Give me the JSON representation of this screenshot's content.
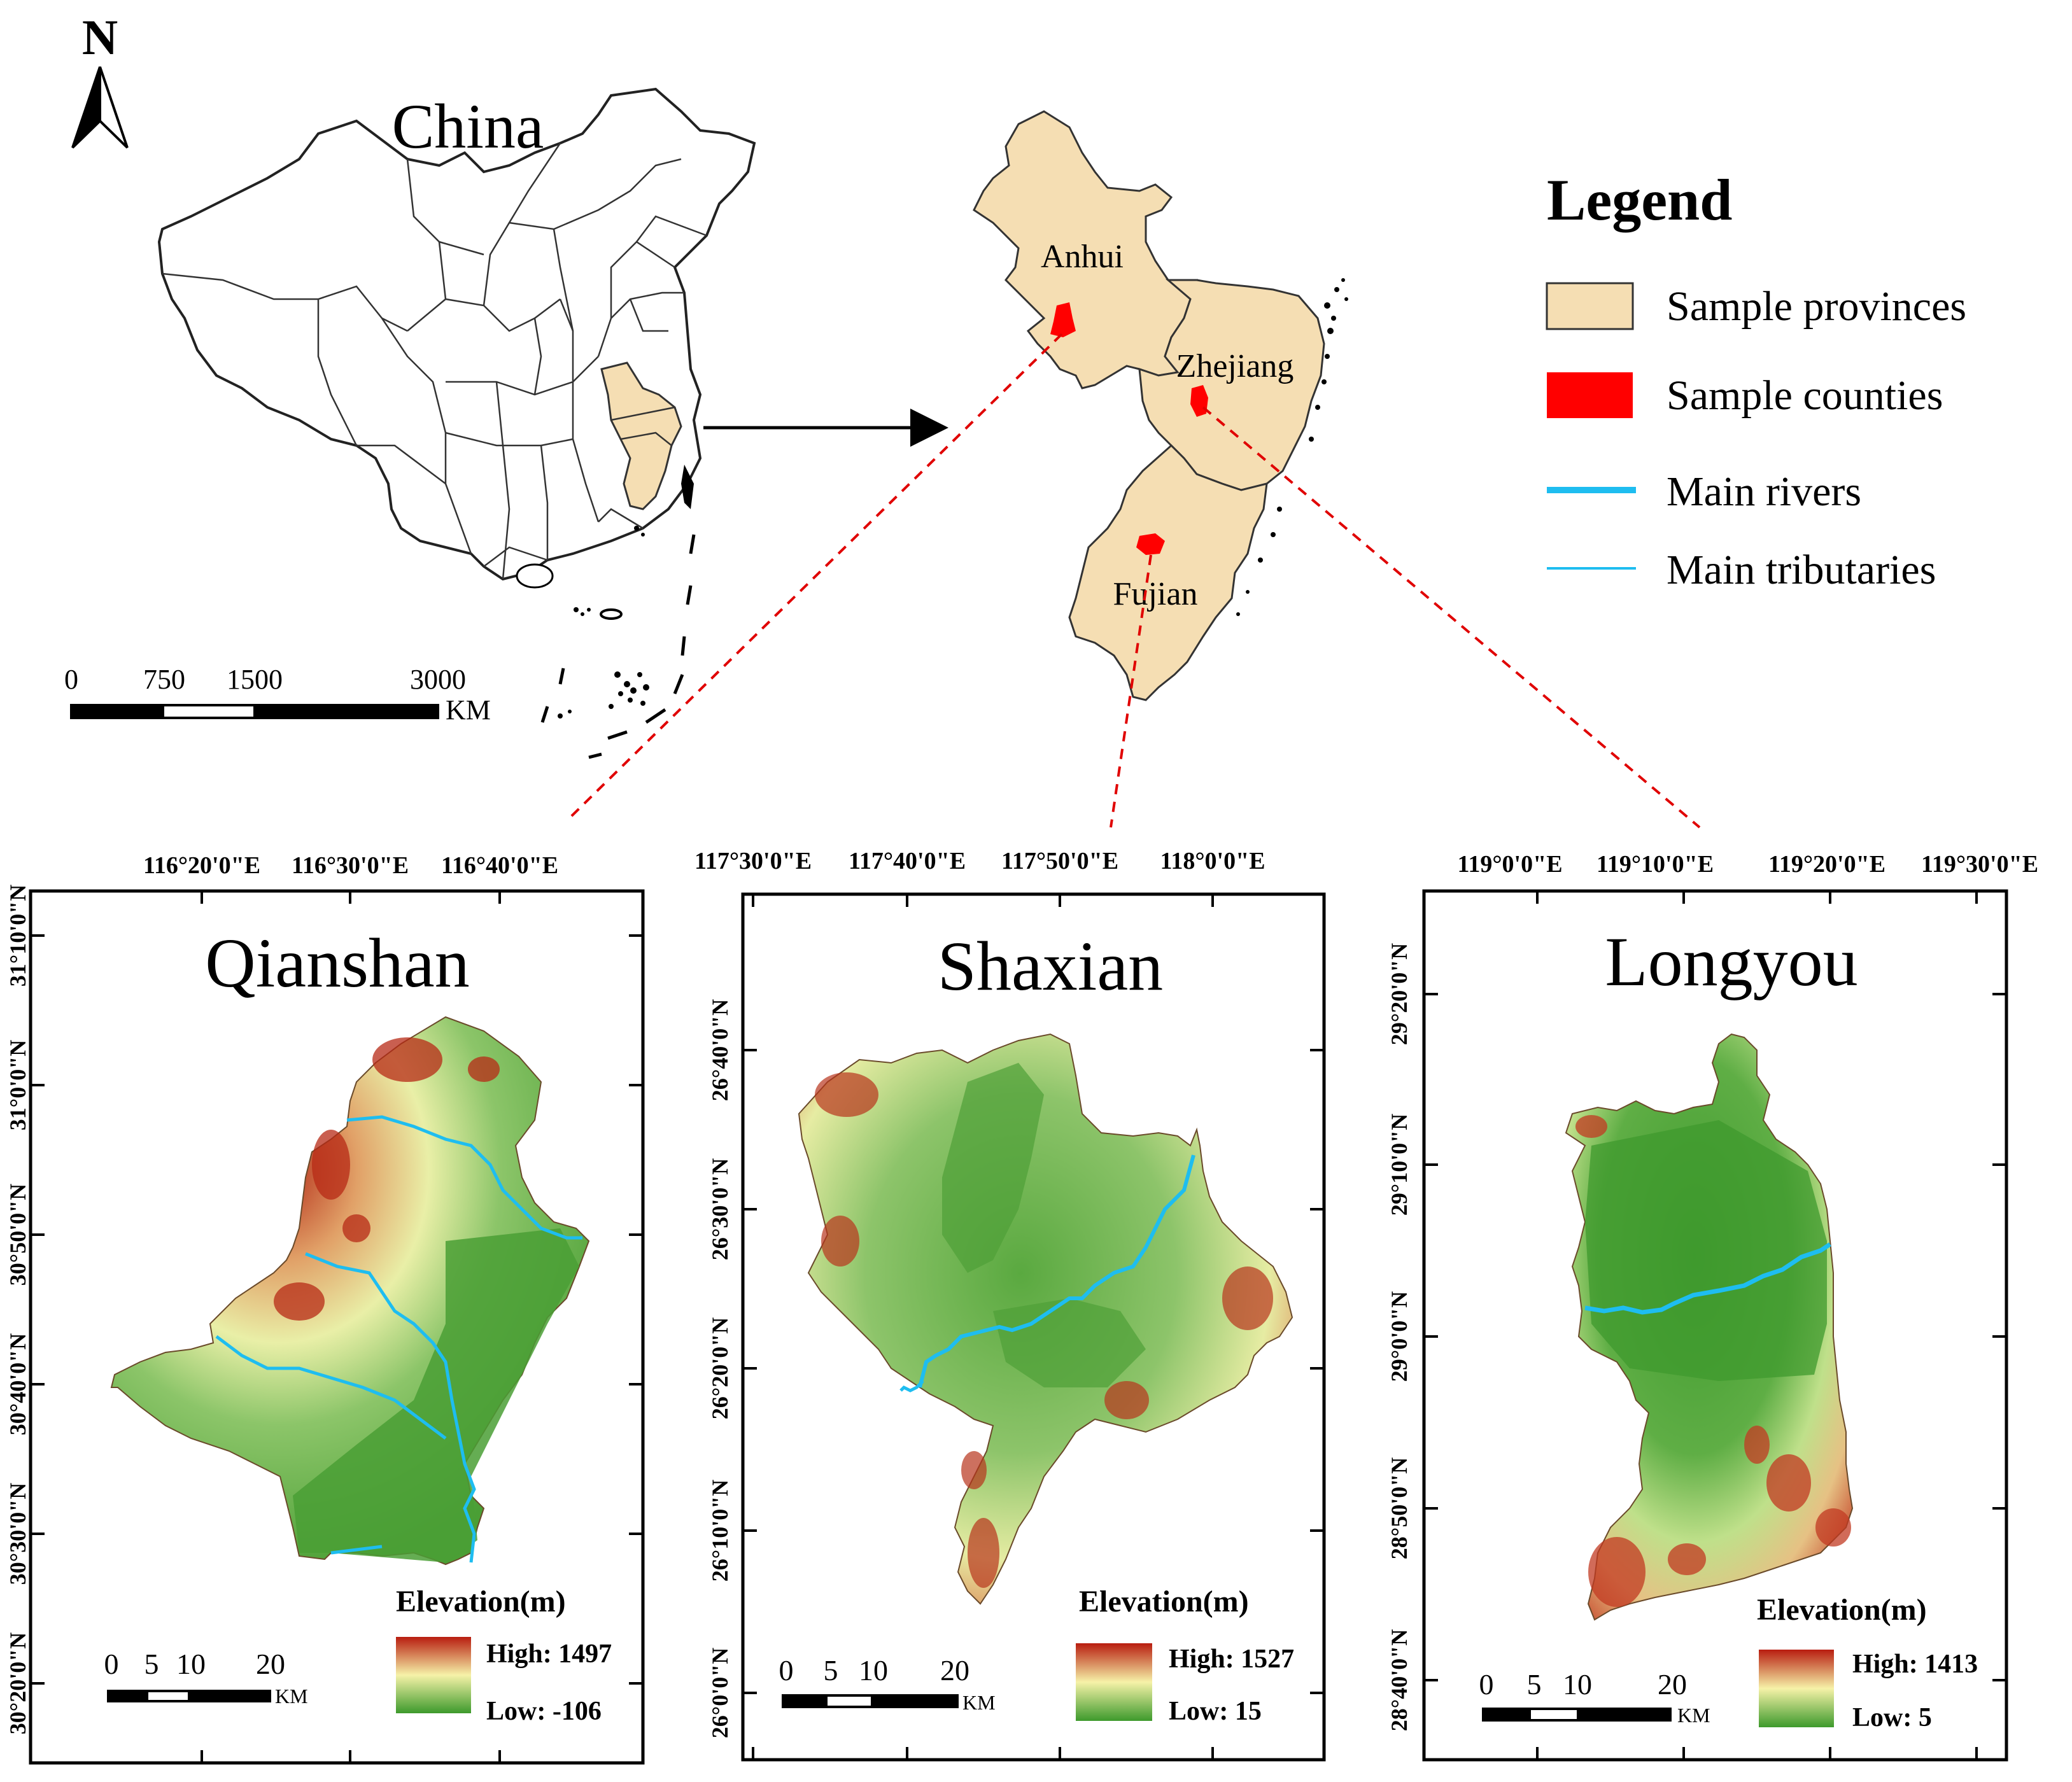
{
  "north_arrow": {
    "label": "N"
  },
  "china_map": {
    "title": "China",
    "scale_bar": {
      "ticks": [
        "0",
        "750",
        "1500",
        "3000"
      ],
      "unit": "KM"
    }
  },
  "province_map": {
    "labels": [
      "Anhui",
      "Zhejiang",
      "Fujian"
    ]
  },
  "legend": {
    "title": "Legend",
    "items": [
      {
        "label": "Sample provinces",
        "kind": "fill",
        "color": "#f5deb3"
      },
      {
        "label": "Sample counties",
        "kind": "fill",
        "color": "#ff0000"
      },
      {
        "label": "Main rivers",
        "kind": "thick-line",
        "color": "#1ebdf0"
      },
      {
        "label": "Main tributaries",
        "kind": "thin-line",
        "color": "#1ebdf0"
      }
    ]
  },
  "counties": [
    {
      "name": "Qianshan",
      "top_ticks": [
        "116°20'0\"E",
        "116°30'0\"E",
        "116°40'0\"E"
      ],
      "left_ticks": [
        "31°10'0\"N",
        "31°0'0\"N",
        "30°50'0\"N",
        "30°40'0\"N",
        "30°30'0\"N",
        "30°20'0\"N"
      ],
      "elevation": {
        "title": "Elevation(m)",
        "high": "High: 1497",
        "low": "Low: -106"
      },
      "scale_bar": {
        "ticks": [
          "0",
          "5",
          "10",
          "20"
        ],
        "unit": "KM"
      }
    },
    {
      "name": "Shaxian",
      "top_ticks": [
        "117°30'0\"E",
        "117°40'0\"E",
        "117°50'0\"E",
        "118°0'0\"E"
      ],
      "left_ticks": [
        "26°40'0\"N",
        "26°30'0\"N",
        "26°20'0\"N",
        "26°10'0\"N",
        "26°0'0\"N"
      ],
      "elevation": {
        "title": "Elevation(m)",
        "high": "High: 1527",
        "low": "Low: 15"
      },
      "scale_bar": {
        "ticks": [
          "0",
          "5",
          "10",
          "20"
        ],
        "unit": "KM"
      }
    },
    {
      "name": "Longyou",
      "top_ticks": [
        "119°0'0\"E",
        "119°10'0\"E",
        "119°20'0\"E",
        "119°30'0\"E"
      ],
      "left_ticks": [
        "29°20'0\"N",
        "29°10'0\"N",
        "29°0'0\"N",
        "28°50'0\"N",
        "28°40'0\"N"
      ],
      "elevation": {
        "title": "Elevation(m)",
        "high": "High: 1413",
        "low": "Low: 5"
      },
      "scale_bar": {
        "ticks": [
          "0",
          "5",
          "10",
          "20"
        ],
        "unit": "KM"
      }
    }
  ],
  "colors": {
    "province_fill": "#f5deb3",
    "county_fill": "#ff0000",
    "river": "#1ebdf0",
    "elev_high": "#b81d10",
    "elev_mid": "#f6f2a8",
    "elev_low": "#3d9a2c",
    "connector": "#e00000"
  }
}
